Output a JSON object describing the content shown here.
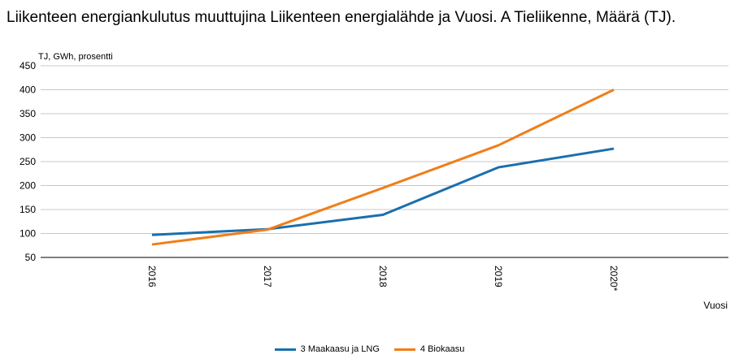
{
  "title": "Liikenteen energiankulutus muuttujina Liikenteen energialähde ja Vuosi. A Tieliikenne, Määrä (TJ).",
  "chart_data": {
    "type": "line",
    "title": "Liikenteen energiankulutus muuttujina Liikenteen energialähde ja Vuosi. A Tieliikenne, Määrä (TJ).",
    "ylabel": "TJ, GWh, prosentti",
    "xlabel": "Vuosi",
    "categories": [
      "2016",
      "2017",
      "2018",
      "2019",
      "2020*"
    ],
    "ylim": [
      50,
      450
    ],
    "yticks": [
      50,
      100,
      150,
      200,
      250,
      300,
      350,
      400,
      450
    ],
    "grid": true,
    "legend_position": "bottom",
    "series": [
      {
        "name": "3 Maakaasu ja LNG",
        "color": "#1a6fad",
        "values": [
          97,
          109,
          139,
          238,
          277
        ]
      },
      {
        "name": "4 Biokaasu",
        "color": "#f07e1a",
        "values": [
          77,
          108,
          195,
          284,
          400
        ]
      }
    ]
  }
}
